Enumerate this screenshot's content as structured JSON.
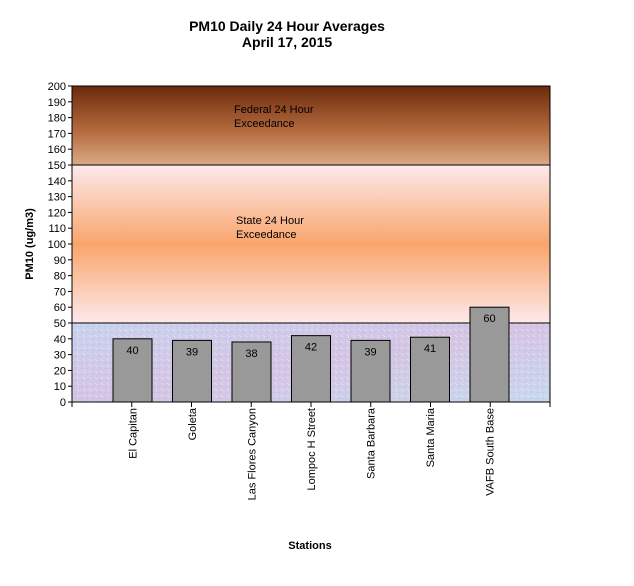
{
  "chart_data": {
    "type": "bar",
    "title": "PM10 Daily 24 Hour Averages",
    "subtitle": "April 17, 2015",
    "xlabel": "Stations",
    "ylabel": "PM10 (ug/m3)",
    "ylim": [
      0,
      200
    ],
    "ytick_step": 10,
    "grid": false,
    "categories": [
      "El Capitan",
      "Goleta",
      "Las Flores Canyon",
      "Lompoc H Street",
      "Santa Barbara",
      "Santa Maria",
      "VAFB South Base"
    ],
    "values": [
      40,
      39,
      38,
      42,
      39,
      41,
      60
    ],
    "bar_color": "#999999",
    "zones": [
      {
        "label_line1": "Federal 24 Hour",
        "label_line2": "Exceedance",
        "from": 150,
        "to": 200,
        "color_top": "#6b2a0c",
        "color_mid": "#b3683c",
        "color_bottom": "#d9aa85"
      },
      {
        "label_line1": "State 24 Hour",
        "label_line2": "Exceedance",
        "from": 50,
        "to": 150,
        "color_top": "#fde9ec",
        "color_mid": "#f9a56b",
        "color_bottom": "#fde9ec"
      },
      {
        "label_line1": "",
        "label_line2": "",
        "from": 0,
        "to": 50,
        "color_top": "#c8d3ee",
        "color_mid": "#d6c4e4",
        "color_bottom": "#c8d8ee"
      }
    ]
  }
}
